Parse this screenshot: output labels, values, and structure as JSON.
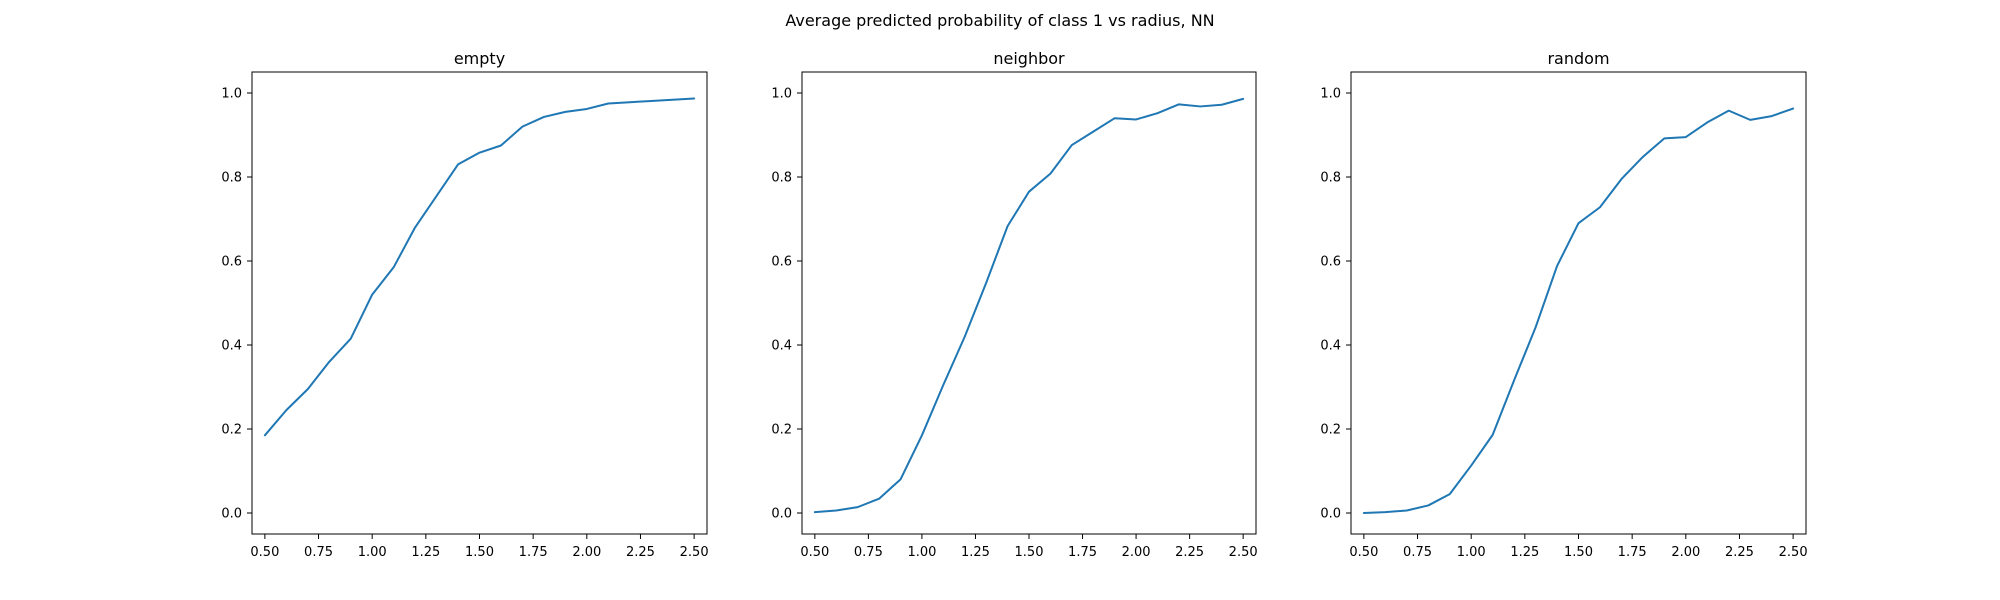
{
  "figure": {
    "title": "Average predicted probability of class 1 vs radius, NN"
  },
  "colors": {
    "line": "#1f77b4",
    "background": "#ffffff",
    "axes": "#000000"
  },
  "chart_data": [
    {
      "type": "line",
      "title": "empty",
      "xlabel": "",
      "ylabel": "",
      "xlim": [
        0.44,
        2.56
      ],
      "ylim": [
        -0.05,
        1.05
      ],
      "xticks": [
        0.5,
        0.75,
        1.0,
        1.25,
        1.5,
        1.75,
        2.0,
        2.25,
        2.5
      ],
      "xtick_labels": [
        "0.50",
        "0.75",
        "1.00",
        "1.25",
        "1.50",
        "1.75",
        "2.00",
        "2.25",
        "2.50"
      ],
      "yticks": [
        0.0,
        0.2,
        0.4,
        0.6,
        0.8,
        1.0
      ],
      "ytick_labels": [
        "0.0",
        "0.2",
        "0.4",
        "0.6",
        "0.8",
        "1.0"
      ],
      "grid": false,
      "x": [
        0.5,
        0.6,
        0.7,
        0.8,
        0.9,
        1.0,
        1.1,
        1.2,
        1.3,
        1.4,
        1.5,
        1.6,
        1.7,
        1.8,
        1.9,
        2.0,
        2.1,
        2.2,
        2.3,
        2.4,
        2.5
      ],
      "series": [
        {
          "values": [
            0.185,
            0.245,
            0.295,
            0.36,
            0.415,
            0.52,
            0.585,
            0.68,
            0.755,
            0.83,
            0.858,
            0.875,
            0.92,
            0.943,
            0.955,
            0.962,
            0.975,
            0.978,
            0.981,
            0.984,
            0.987
          ]
        }
      ]
    },
    {
      "type": "line",
      "title": "neighbor",
      "xlabel": "",
      "ylabel": "",
      "xlim": [
        0.44,
        2.56
      ],
      "ylim": [
        -0.05,
        1.05
      ],
      "xticks": [
        0.5,
        0.75,
        1.0,
        1.25,
        1.5,
        1.75,
        2.0,
        2.25,
        2.5
      ],
      "xtick_labels": [
        "0.50",
        "0.75",
        "1.00",
        "1.25",
        "1.50",
        "1.75",
        "2.00",
        "2.25",
        "2.50"
      ],
      "yticks": [
        0.0,
        0.2,
        0.4,
        0.6,
        0.8,
        1.0
      ],
      "ytick_labels": [
        "0.0",
        "0.2",
        "0.4",
        "0.6",
        "0.8",
        "1.0"
      ],
      "grid": false,
      "x": [
        0.5,
        0.6,
        0.7,
        0.8,
        0.9,
        1.0,
        1.1,
        1.2,
        1.3,
        1.4,
        1.5,
        1.6,
        1.7,
        1.8,
        1.9,
        2.0,
        2.1,
        2.2,
        2.3,
        2.4,
        2.5
      ],
      "series": [
        {
          "values": [
            0.002,
            0.006,
            0.014,
            0.034,
            0.08,
            0.185,
            0.305,
            0.42,
            0.548,
            0.683,
            0.765,
            0.808,
            0.876,
            0.908,
            0.94,
            0.937,
            0.952,
            0.973,
            0.968,
            0.972,
            0.986
          ]
        }
      ]
    },
    {
      "type": "line",
      "title": "random",
      "xlabel": "",
      "ylabel": "",
      "xlim": [
        0.44,
        2.56
      ],
      "ylim": [
        -0.05,
        1.05
      ],
      "xticks": [
        0.5,
        0.75,
        1.0,
        1.25,
        1.5,
        1.75,
        2.0,
        2.25,
        2.5
      ],
      "xtick_labels": [
        "0.50",
        "0.75",
        "1.00",
        "1.25",
        "1.50",
        "1.75",
        "2.00",
        "2.25",
        "2.50"
      ],
      "yticks": [
        0.0,
        0.2,
        0.4,
        0.6,
        0.8,
        1.0
      ],
      "ytick_labels": [
        "0.0",
        "0.2",
        "0.4",
        "0.6",
        "0.8",
        "1.0"
      ],
      "grid": false,
      "x": [
        0.5,
        0.6,
        0.7,
        0.8,
        0.9,
        1.0,
        1.1,
        1.2,
        1.3,
        1.4,
        1.5,
        1.6,
        1.7,
        1.8,
        1.9,
        2.0,
        2.1,
        2.2,
        2.3,
        2.4,
        2.5
      ],
      "series": [
        {
          "values": [
            0.0,
            0.002,
            0.006,
            0.018,
            0.045,
            0.113,
            0.186,
            0.316,
            0.442,
            0.588,
            0.69,
            0.728,
            0.795,
            0.848,
            0.892,
            0.895,
            0.93,
            0.958,
            0.936,
            0.945,
            0.963
          ]
        }
      ]
    }
  ]
}
